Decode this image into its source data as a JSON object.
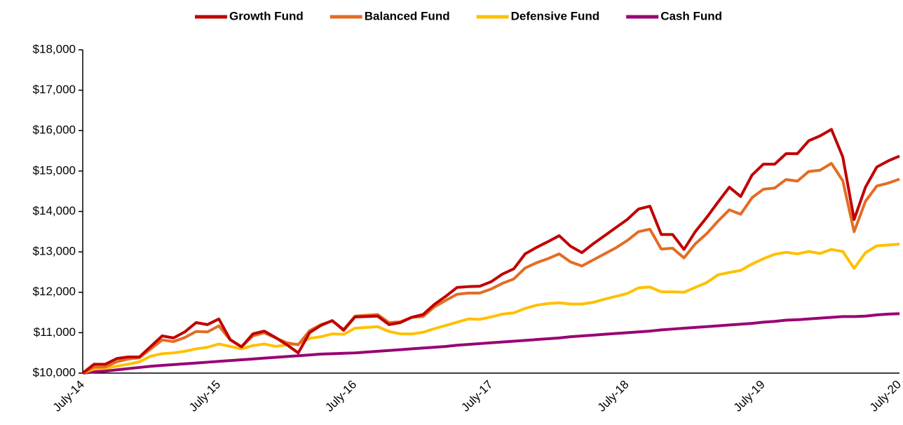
{
  "chart_data": {
    "type": "line",
    "categories": [
      "July-14",
      null,
      null,
      null,
      null,
      null,
      null,
      null,
      null,
      null,
      null,
      null,
      "July-15",
      null,
      null,
      null,
      null,
      null,
      null,
      null,
      null,
      null,
      null,
      null,
      "July-16",
      null,
      null,
      null,
      null,
      null,
      null,
      null,
      null,
      null,
      null,
      null,
      "July-17",
      null,
      null,
      null,
      null,
      null,
      null,
      null,
      null,
      null,
      null,
      null,
      "July-18",
      null,
      null,
      null,
      null,
      null,
      null,
      null,
      null,
      null,
      null,
      null,
      "July-19",
      null,
      null,
      null,
      null,
      null,
      null,
      null,
      null,
      null,
      null,
      null,
      "July-20"
    ],
    "series": [
      {
        "name": "Growth Fund",
        "color": "#c00000",
        "values": [
          10000,
          10220,
          10220,
          10360,
          10400,
          10400,
          10660,
          10920,
          10870,
          11020,
          11250,
          11200,
          11340,
          10830,
          10650,
          10970,
          11040,
          10880,
          10700,
          10500,
          11000,
          11180,
          11300,
          11060,
          11390,
          11400,
          11410,
          11200,
          11250,
          11380,
          11450,
          11700,
          11900,
          12120,
          12140,
          12150,
          12260,
          12450,
          12580,
          12950,
          13110,
          13250,
          13400,
          13140,
          12980,
          13200,
          13400,
          13600,
          13800,
          14060,
          14130,
          13430,
          13430,
          13060,
          13500,
          13850,
          14230,
          14600,
          14370,
          14900,
          15170,
          15170,
          15430,
          15430,
          15750,
          15870,
          16030,
          15350,
          13800,
          14600,
          15100,
          15250,
          15370
        ]
      },
      {
        "name": "Balanced Fund",
        "color": "#e46c24",
        "values": [
          10000,
          10150,
          10150,
          10280,
          10350,
          10380,
          10600,
          10820,
          10780,
          10880,
          11030,
          11020,
          11170,
          10820,
          10650,
          10920,
          11000,
          10870,
          10750,
          10700,
          11050,
          11200,
          11290,
          11080,
          11410,
          11430,
          11450,
          11250,
          11270,
          11380,
          11400,
          11640,
          11800,
          11950,
          11980,
          11980,
          12080,
          12220,
          12330,
          12600,
          12730,
          12830,
          12950,
          12750,
          12650,
          12800,
          12950,
          13100,
          13280,
          13500,
          13560,
          13070,
          13090,
          12850,
          13200,
          13450,
          13760,
          14040,
          13930,
          14340,
          14550,
          14580,
          14790,
          14750,
          14990,
          15020,
          15190,
          14760,
          13500,
          14250,
          14630,
          14700,
          14800
        ]
      },
      {
        "name": "Defensive Fund",
        "color": "#ffc000",
        "values": [
          10000,
          10100,
          10120,
          10170,
          10220,
          10280,
          10420,
          10480,
          10500,
          10540,
          10600,
          10640,
          10720,
          10660,
          10600,
          10680,
          10720,
          10660,
          10700,
          10720,
          10860,
          10900,
          10970,
          10960,
          11110,
          11130,
          11150,
          11030,
          10970,
          10970,
          11010,
          11100,
          11180,
          11260,
          11340,
          11330,
          11390,
          11460,
          11490,
          11600,
          11680,
          11720,
          11740,
          11710,
          11710,
          11750,
          11830,
          11900,
          11970,
          12110,
          12130,
          12010,
          12010,
          12000,
          12120,
          12240,
          12430,
          12490,
          12540,
          12700,
          12830,
          12940,
          12990,
          12950,
          13010,
          12960,
          13060,
          13010,
          12590,
          12980,
          13150,
          13170,
          13190
        ]
      },
      {
        "name": "Cash Fund",
        "color": "#990073",
        "values": [
          10000,
          10030,
          10050,
          10080,
          10110,
          10140,
          10170,
          10190,
          10210,
          10230,
          10250,
          10270,
          10290,
          10310,
          10330,
          10350,
          10370,
          10390,
          10410,
          10430,
          10450,
          10470,
          10480,
          10490,
          10500,
          10520,
          10540,
          10560,
          10580,
          10600,
          10620,
          10640,
          10660,
          10690,
          10710,
          10730,
          10750,
          10770,
          10790,
          10810,
          10830,
          10850,
          10870,
          10900,
          10920,
          10940,
          10960,
          10980,
          11000,
          11020,
          11040,
          11070,
          11090,
          11110,
          11130,
          11150,
          11170,
          11190,
          11210,
          11230,
          11260,
          11280,
          11310,
          11320,
          11340,
          11360,
          11380,
          11400,
          11400,
          11410,
          11440,
          11460,
          11470
        ]
      }
    ],
    "ylim": [
      10000,
      18000
    ],
    "yticks": [
      {
        "value": 10000,
        "label": "$10,000"
      },
      {
        "value": 11000,
        "label": "$11,000"
      },
      {
        "value": 12000,
        "label": "$12,000"
      },
      {
        "value": 13000,
        "label": "$13,000"
      },
      {
        "value": 14000,
        "label": "$14,000"
      },
      {
        "value": 15000,
        "label": "$15,000"
      },
      {
        "value": 16000,
        "label": "$16,000"
      },
      {
        "value": 17000,
        "label": "$17,000"
      },
      {
        "value": 18000,
        "label": "$18,000"
      }
    ],
    "grid": false,
    "legend": "top"
  }
}
